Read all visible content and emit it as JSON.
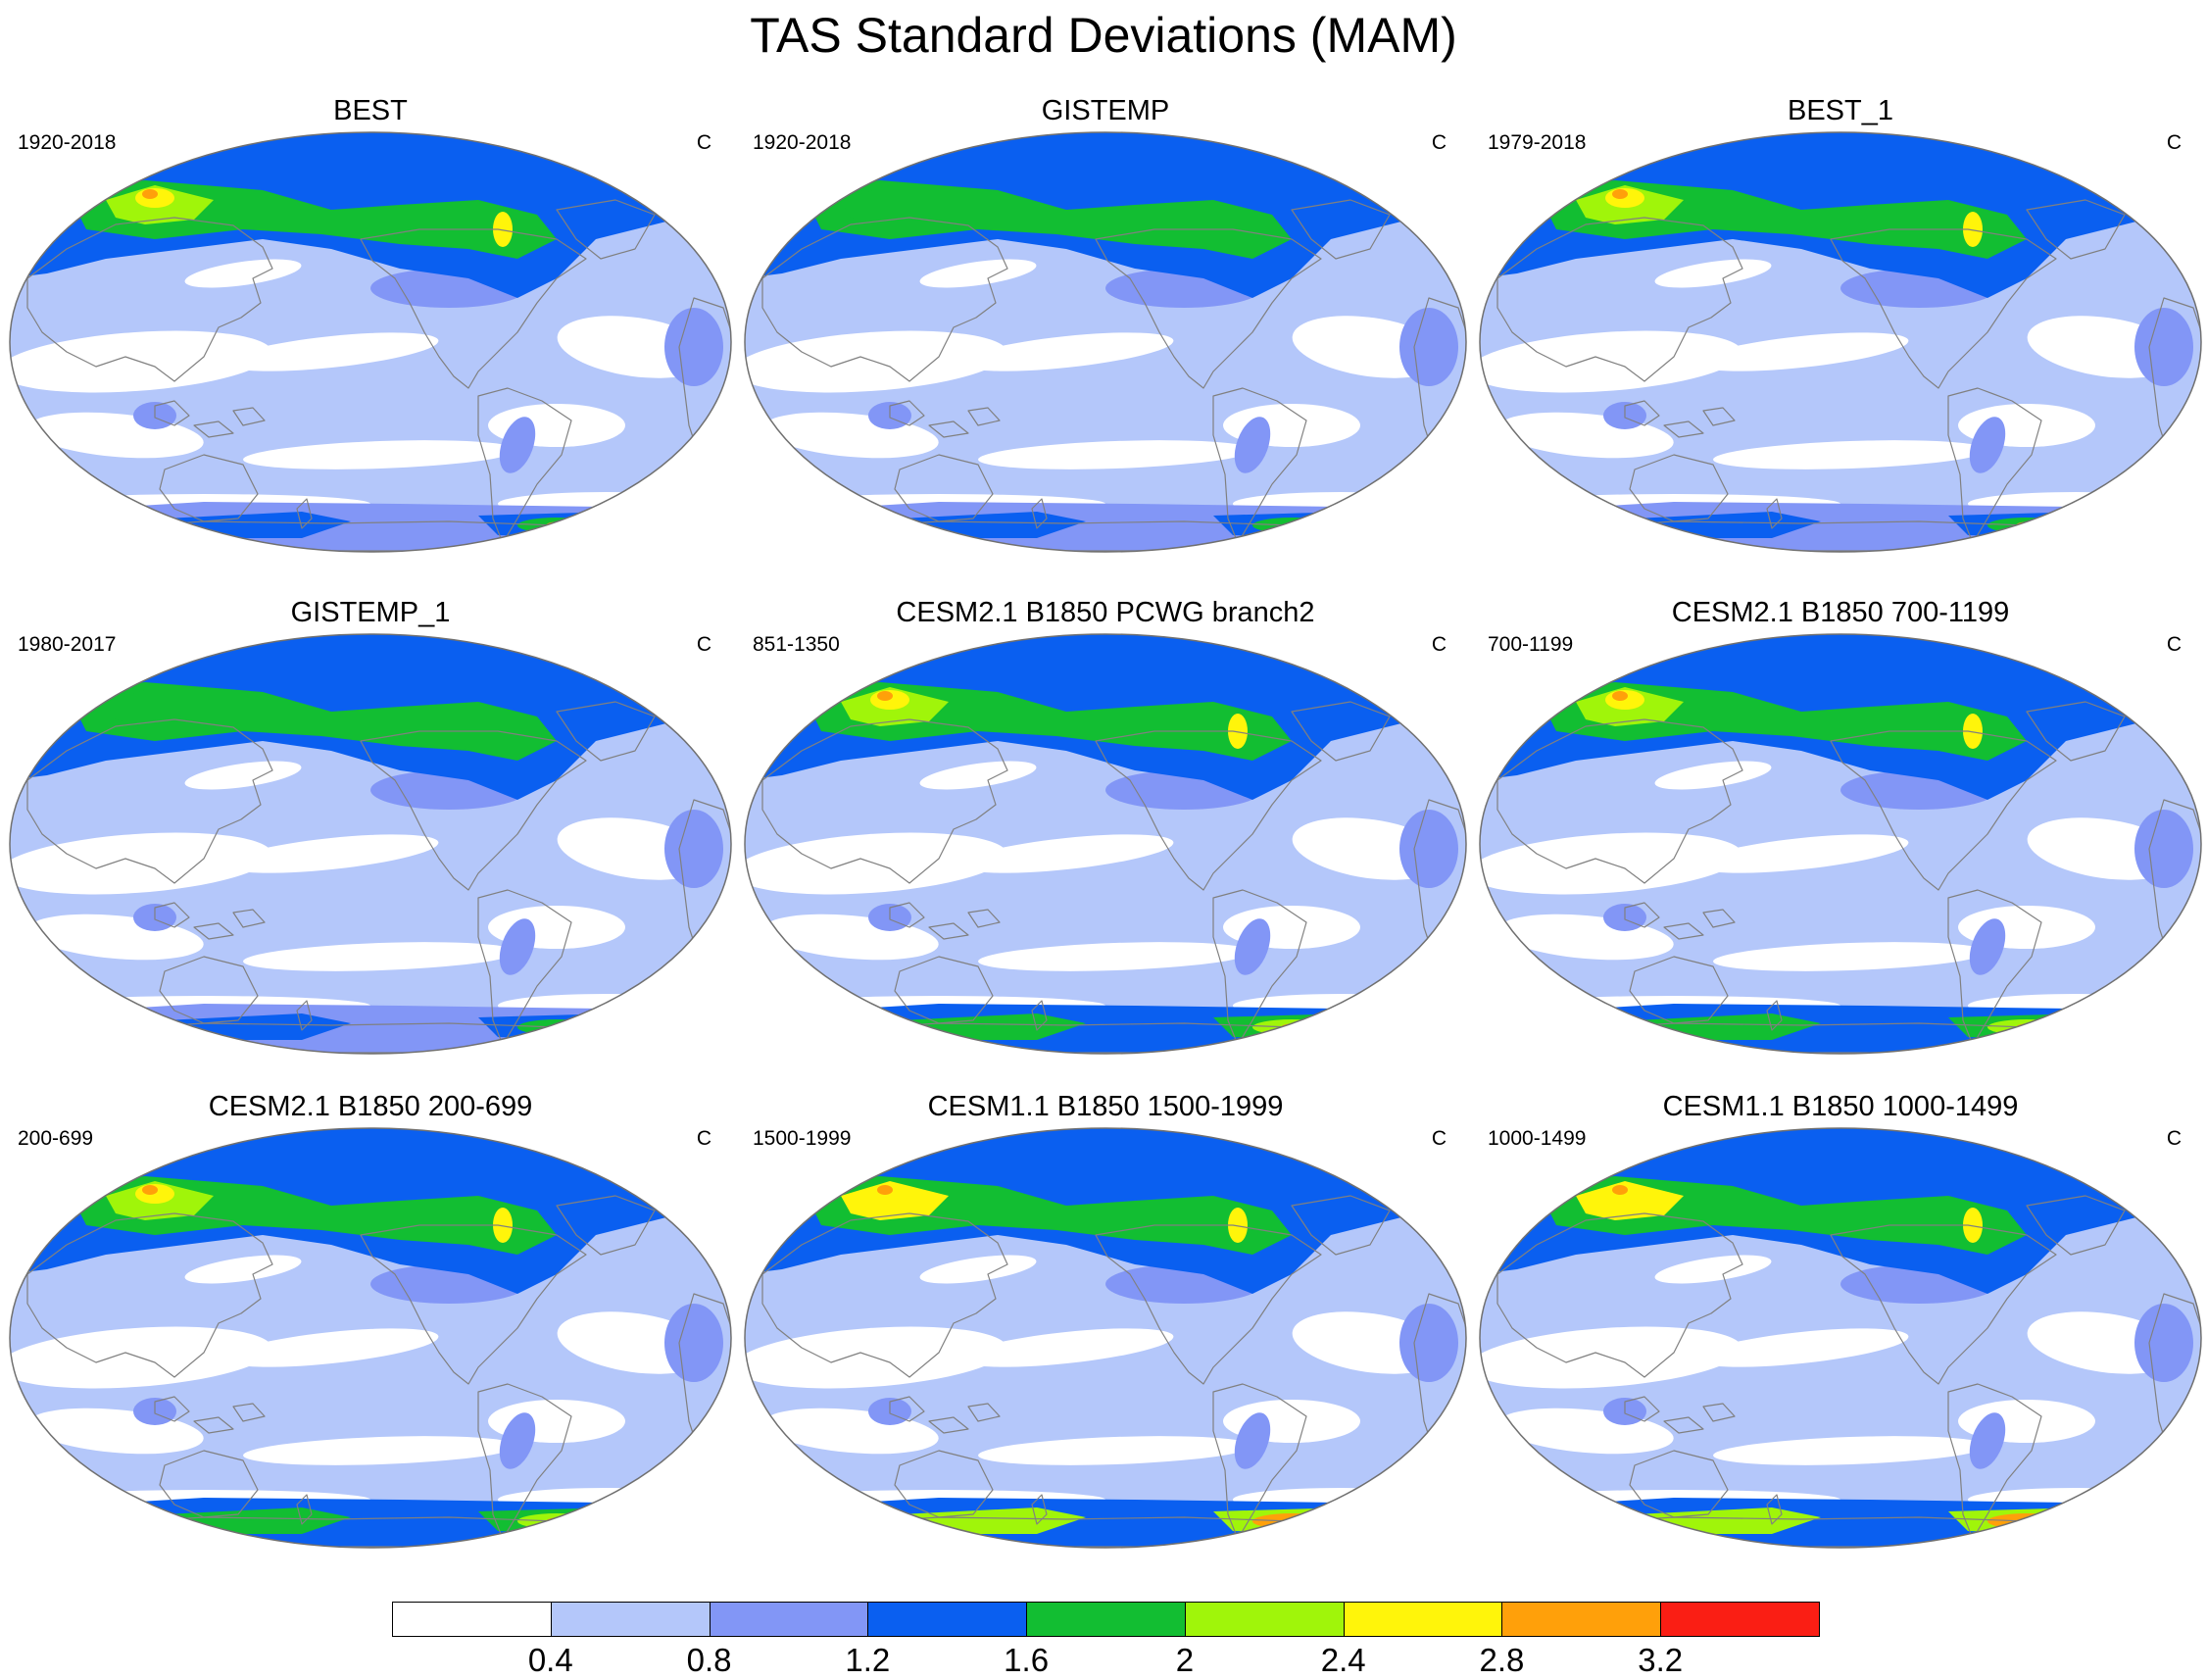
{
  "title": "TAS Standard Deviations (MAM)",
  "unit": "C",
  "panels": [
    {
      "title": "BEST",
      "period": "1920-2018",
      "style": "obs"
    },
    {
      "title": "GISTEMP",
      "period": "1920-2018",
      "style": "obs2"
    },
    {
      "title": "BEST_1",
      "period": "1979-2018",
      "style": "obs"
    },
    {
      "title": "GISTEMP_1",
      "period": "1980-2017",
      "style": "obs2"
    },
    {
      "title": "CESM2.1 B1850 PCWG branch2",
      "period": "851-1350",
      "style": "model"
    },
    {
      "title": "CESM2.1 B1850 700-1199",
      "period": "700-1199",
      "style": "model"
    },
    {
      "title": "CESM2.1 B1850 200-699",
      "period": "200-699",
      "style": "model"
    },
    {
      "title": "CESM1.1 B1850 1500-1999",
      "period": "1500-1999",
      "style": "model2"
    },
    {
      "title": "CESM1.1 B1850 1000-1499",
      "period": "1000-1499",
      "style": "model2"
    }
  ],
  "colorbar": {
    "colors": [
      "#ffffff",
      "#b4c7fa",
      "#8296f6",
      "#0a5ff0",
      "#12be32",
      "#a0f50a",
      "#fff50a",
      "#ffa00a",
      "#fa1e14"
    ],
    "labels": [
      "0.4",
      "0.8",
      "1.2",
      "1.6",
      "2",
      "2.4",
      "2.8",
      "3.2"
    ]
  }
}
